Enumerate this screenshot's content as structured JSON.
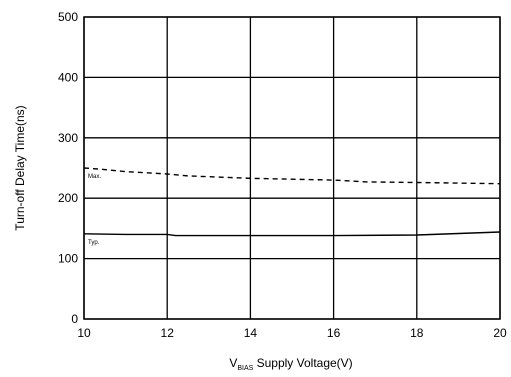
{
  "chart_data": {
    "type": "line",
    "title": "",
    "xlabel_main": "V",
    "xlabel_sub": "BIAS",
    "xlabel_rest": " Supply Voltage(V)",
    "ylabel": "Turn-off Delay Time(ns)",
    "xlim": [
      10,
      20
    ],
    "ylim": [
      0,
      500
    ],
    "x_ticks": [
      "10",
      "12",
      "14",
      "16",
      "18",
      "20"
    ],
    "y_ticks": [
      "0",
      "100",
      "200",
      "300",
      "400",
      "500"
    ],
    "grid": true,
    "series": [
      {
        "name": "Max.",
        "style": "dashed",
        "x": [
          10,
          10.4,
          11,
          12,
          12.5,
          14,
          16,
          16.8,
          18,
          20
        ],
        "y": [
          250,
          248,
          244,
          240,
          237,
          233,
          230,
          227,
          226,
          224
        ]
      },
      {
        "name": "Typ.",
        "style": "solid",
        "x": [
          10,
          11,
          12,
          12.2,
          14,
          16,
          18,
          20
        ],
        "y": [
          141,
          140,
          140,
          138,
          138,
          138,
          139,
          144
        ]
      }
    ]
  }
}
